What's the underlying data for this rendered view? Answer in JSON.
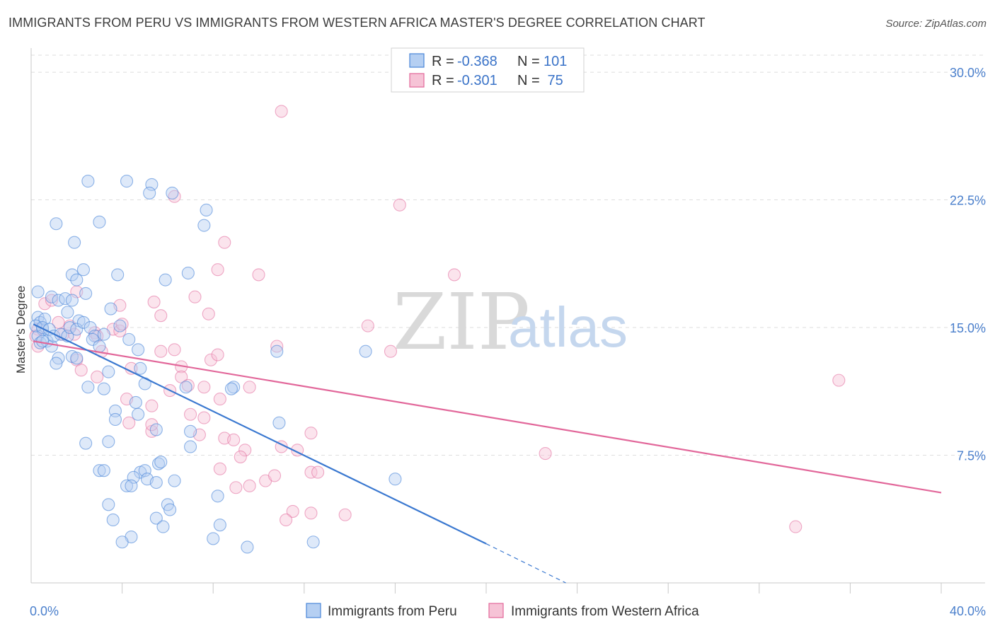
{
  "title": "IMMIGRANTS FROM PERU VS IMMIGRANTS FROM WESTERN AFRICA MASTER'S DEGREE CORRELATION CHART",
  "source": "Source: ZipAtlas.com",
  "watermark": {
    "zip": "ZIP",
    "atlas": "atlas"
  },
  "colors": {
    "peru": "#4a86d8",
    "peru_fill": "#b5cff2",
    "wafrica": "#e2679a",
    "wafrica_fill": "#f6c3d6"
  },
  "chart_data": {
    "type": "scatter",
    "title": "IMMIGRANTS FROM PERU VS IMMIGRANTS FROM WESTERN AFRICA MASTER'S DEGREE CORRELATION CHART",
    "xlabel": "",
    "ylabel": "Master's Degree",
    "xlim": [
      0,
      40
    ],
    "ylim": [
      0,
      31
    ],
    "x_tick_labels": [
      {
        "v": 0,
        "label": "0.0%"
      },
      {
        "v": 40,
        "label": "40.0%"
      }
    ],
    "y_tick_labels": [
      {
        "v": 7.5,
        "label": "7.5%"
      },
      {
        "v": 15,
        "label": "15.0%"
      },
      {
        "v": 22.5,
        "label": "22.5%"
      },
      {
        "v": 30,
        "label": "30.0%"
      }
    ],
    "x_minor_ticks": [
      4,
      8,
      12,
      16,
      20,
      24,
      28,
      32,
      36,
      40
    ],
    "legend": [
      {
        "r_label": "R = ",
        "r": "-0.368",
        "n_label": "N = ",
        "n": "101"
      },
      {
        "r_label": "R = ",
        "r": "-0.301",
        "n_label": "N = ",
        "n": " 75"
      }
    ],
    "series": [
      {
        "name": "Immigrants from Peru",
        "trend": {
          "x0": 0.1,
          "y0": 15.2,
          "x1": 20.0,
          "y1": 2.3,
          "dash_x1": 23.5,
          "dash_y1": 0.0
        },
        "points": [
          [
            0.3,
            15.6
          ],
          [
            0.4,
            15.3
          ],
          [
            0.5,
            14.9
          ],
          [
            0.3,
            14.5
          ],
          [
            0.6,
            15.5
          ],
          [
            0.2,
            15.1
          ],
          [
            0.5,
            15.0
          ],
          [
            0.8,
            14.9
          ],
          [
            0.4,
            14.1
          ],
          [
            0.7,
            14.2
          ],
          [
            0.9,
            13.9
          ],
          [
            1.0,
            14.5
          ],
          [
            1.3,
            14.6
          ],
          [
            1.6,
            14.5
          ],
          [
            1.2,
            13.2
          ],
          [
            1.1,
            12.9
          ],
          [
            0.3,
            17.1
          ],
          [
            0.9,
            16.8
          ],
          [
            1.2,
            16.6
          ],
          [
            1.5,
            16.7
          ],
          [
            1.8,
            16.6
          ],
          [
            1.6,
            15.9
          ],
          [
            1.7,
            15.0
          ],
          [
            2.1,
            15.4
          ],
          [
            2.0,
            14.9
          ],
          [
            2.3,
            15.3
          ],
          [
            2.6,
            15.0
          ],
          [
            2.8,
            14.5
          ],
          [
            2.7,
            14.3
          ],
          [
            3.2,
            14.6
          ],
          [
            3.0,
            13.9
          ],
          [
            1.8,
            13.3
          ],
          [
            2.0,
            13.2
          ],
          [
            2.5,
            11.5
          ],
          [
            3.5,
            16.1
          ],
          [
            3.9,
            15.1
          ],
          [
            4.3,
            14.3
          ],
          [
            4.7,
            13.7
          ],
          [
            2.4,
            17.0
          ],
          [
            1.8,
            18.1
          ],
          [
            2.3,
            18.4
          ],
          [
            2.0,
            17.8
          ],
          [
            3.8,
            18.1
          ],
          [
            1.1,
            21.1
          ],
          [
            3.0,
            21.2
          ],
          [
            1.9,
            20.0
          ],
          [
            2.5,
            23.6
          ],
          [
            4.2,
            23.6
          ],
          [
            5.3,
            23.4
          ],
          [
            5.2,
            22.9
          ],
          [
            6.2,
            22.9
          ],
          [
            7.7,
            21.9
          ],
          [
            7.6,
            21.0
          ],
          [
            5.9,
            17.8
          ],
          [
            6.9,
            18.2
          ],
          [
            3.4,
            12.4
          ],
          [
            4.8,
            12.6
          ],
          [
            5.0,
            11.7
          ],
          [
            3.2,
            11.4
          ],
          [
            6.8,
            11.5
          ],
          [
            8.9,
            11.5
          ],
          [
            8.8,
            11.4
          ],
          [
            4.6,
            10.6
          ],
          [
            4.7,
            9.9
          ],
          [
            3.7,
            10.1
          ],
          [
            3.7,
            9.6
          ],
          [
            5.5,
            9.0
          ],
          [
            7.0,
            8.9
          ],
          [
            3.4,
            8.3
          ],
          [
            2.4,
            8.2
          ],
          [
            7.0,
            8.0
          ],
          [
            10.8,
            13.6
          ],
          [
            14.7,
            13.6
          ],
          [
            10.9,
            9.4
          ],
          [
            4.8,
            6.5
          ],
          [
            5.0,
            6.6
          ],
          [
            5.6,
            7.0
          ],
          [
            5.7,
            7.1
          ],
          [
            3.0,
            6.6
          ],
          [
            3.2,
            6.6
          ],
          [
            4.5,
            6.2
          ],
          [
            5.1,
            6.1
          ],
          [
            4.2,
            5.7
          ],
          [
            5.5,
            5.9
          ],
          [
            6.3,
            6.0
          ],
          [
            4.4,
            5.7
          ],
          [
            8.2,
            5.1
          ],
          [
            3.4,
            4.6
          ],
          [
            6.0,
            4.6
          ],
          [
            6.1,
            4.3
          ],
          [
            3.6,
            3.7
          ],
          [
            5.5,
            3.8
          ],
          [
            5.8,
            3.3
          ],
          [
            8.3,
            3.4
          ],
          [
            4.4,
            2.7
          ],
          [
            4.0,
            2.4
          ],
          [
            8.0,
            2.6
          ],
          [
            9.5,
            2.1
          ],
          [
            12.4,
            2.4
          ],
          [
            16.0,
            6.1
          ],
          [
            0.5,
            14.2
          ]
        ]
      },
      {
        "name": "Immigrants from Western Africa",
        "trend": {
          "x0": 0.1,
          "y0": 14.2,
          "x1": 40.0,
          "y1": 5.3
        },
        "points": [
          [
            0.3,
            14.9
          ],
          [
            0.2,
            14.5
          ],
          [
            0.3,
            13.9
          ],
          [
            0.6,
            16.4
          ],
          [
            0.9,
            16.6
          ],
          [
            1.2,
            15.3
          ],
          [
            1.4,
            14.6
          ],
          [
            1.7,
            15.1
          ],
          [
            1.9,
            14.6
          ],
          [
            2.0,
            13.1
          ],
          [
            2.2,
            12.5
          ],
          [
            2.8,
            14.7
          ],
          [
            2.9,
            14.5
          ],
          [
            3.1,
            13.6
          ],
          [
            3.6,
            14.9
          ],
          [
            3.9,
            14.8
          ],
          [
            2.0,
            17.1
          ],
          [
            3.9,
            16.3
          ],
          [
            5.4,
            16.5
          ],
          [
            5.7,
            15.7
          ],
          [
            7.2,
            16.8
          ],
          [
            7.8,
            15.8
          ],
          [
            4.0,
            15.2
          ],
          [
            2.9,
            12.1
          ],
          [
            4.4,
            12.6
          ],
          [
            4.2,
            10.8
          ],
          [
            5.3,
            10.4
          ],
          [
            4.3,
            9.4
          ],
          [
            5.3,
            8.9
          ],
          [
            5.3,
            9.3
          ],
          [
            6.3,
            13.7
          ],
          [
            5.7,
            13.6
          ],
          [
            6.6,
            12.7
          ],
          [
            6.6,
            12.1
          ],
          [
            6.1,
            11.3
          ],
          [
            6.9,
            11.6
          ],
          [
            7.0,
            9.9
          ],
          [
            7.6,
            9.7
          ],
          [
            7.4,
            8.7
          ],
          [
            7.9,
            13.1
          ],
          [
            8.2,
            13.4
          ],
          [
            8.3,
            10.8
          ],
          [
            7.6,
            11.5
          ],
          [
            8.3,
            6.7
          ],
          [
            8.5,
            8.5
          ],
          [
            8.9,
            8.4
          ],
          [
            9.4,
            7.8
          ],
          [
            9.2,
            7.4
          ],
          [
            9.0,
            5.6
          ],
          [
            9.6,
            5.7
          ],
          [
            10.3,
            6.0
          ],
          [
            10.7,
            6.3
          ],
          [
            10.8,
            13.9
          ],
          [
            11.0,
            8.0
          ],
          [
            11.5,
            4.2
          ],
          [
            11.2,
            3.7
          ],
          [
            11.7,
            7.8
          ],
          [
            12.3,
            6.5
          ],
          [
            12.6,
            6.5
          ],
          [
            12.3,
            8.8
          ],
          [
            12.3,
            4.1
          ],
          [
            8.2,
            18.4
          ],
          [
            8.5,
            20.0
          ],
          [
            10.0,
            18.1
          ],
          [
            9.6,
            11.5
          ],
          [
            6.3,
            22.7
          ],
          [
            11.0,
            27.7
          ],
          [
            16.2,
            22.2
          ],
          [
            18.6,
            18.1
          ],
          [
            14.8,
            15.1
          ],
          [
            15.8,
            13.6
          ],
          [
            13.8,
            4.0
          ],
          [
            22.6,
            7.6
          ],
          [
            35.5,
            11.9
          ],
          [
            33.6,
            3.3
          ]
        ]
      }
    ]
  }
}
